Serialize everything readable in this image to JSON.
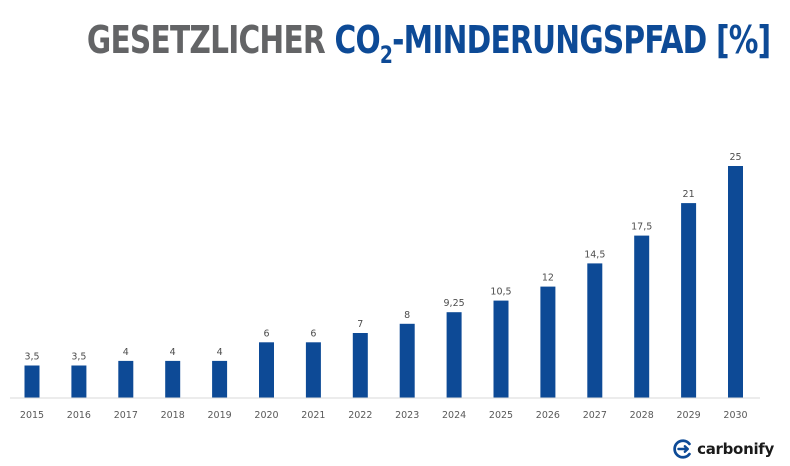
{
  "title": {
    "part1": "GESETZLICHER ",
    "part2": "CO",
    "sub": "2",
    "part3": "-MINDERUNGSPFAD [%]"
  },
  "brand": {
    "name": "carbonify",
    "icon": "carbonify-logo-icon"
  },
  "colors": {
    "bar": "#0d4a96",
    "title_gray": "#636466",
    "title_blue": "#0d4a96"
  },
  "chart_data": {
    "type": "bar",
    "categories": [
      "2015",
      "2016",
      "2017",
      "2018",
      "2019",
      "2020",
      "2021",
      "2022",
      "2023",
      "2024",
      "2025",
      "2026",
      "2027",
      "2028",
      "2029",
      "2030"
    ],
    "values": [
      3.5,
      3.5,
      4,
      4,
      4,
      6,
      6,
      7,
      8,
      9.25,
      10.5,
      12,
      14.5,
      17.5,
      21,
      25
    ],
    "data_labels": [
      "3,5",
      "3,5",
      "4",
      "4",
      "4",
      "6",
      "6",
      "7",
      "8",
      "9,25",
      "10,5",
      "12",
      "14,5",
      "17,5",
      "21",
      "25"
    ],
    "title": "GESETZLICHER CO2-MINDERUNGSPFAD [%]",
    "xlabel": "",
    "ylabel": "",
    "ylim": [
      0,
      25
    ],
    "grid": false,
    "legend": "none"
  }
}
